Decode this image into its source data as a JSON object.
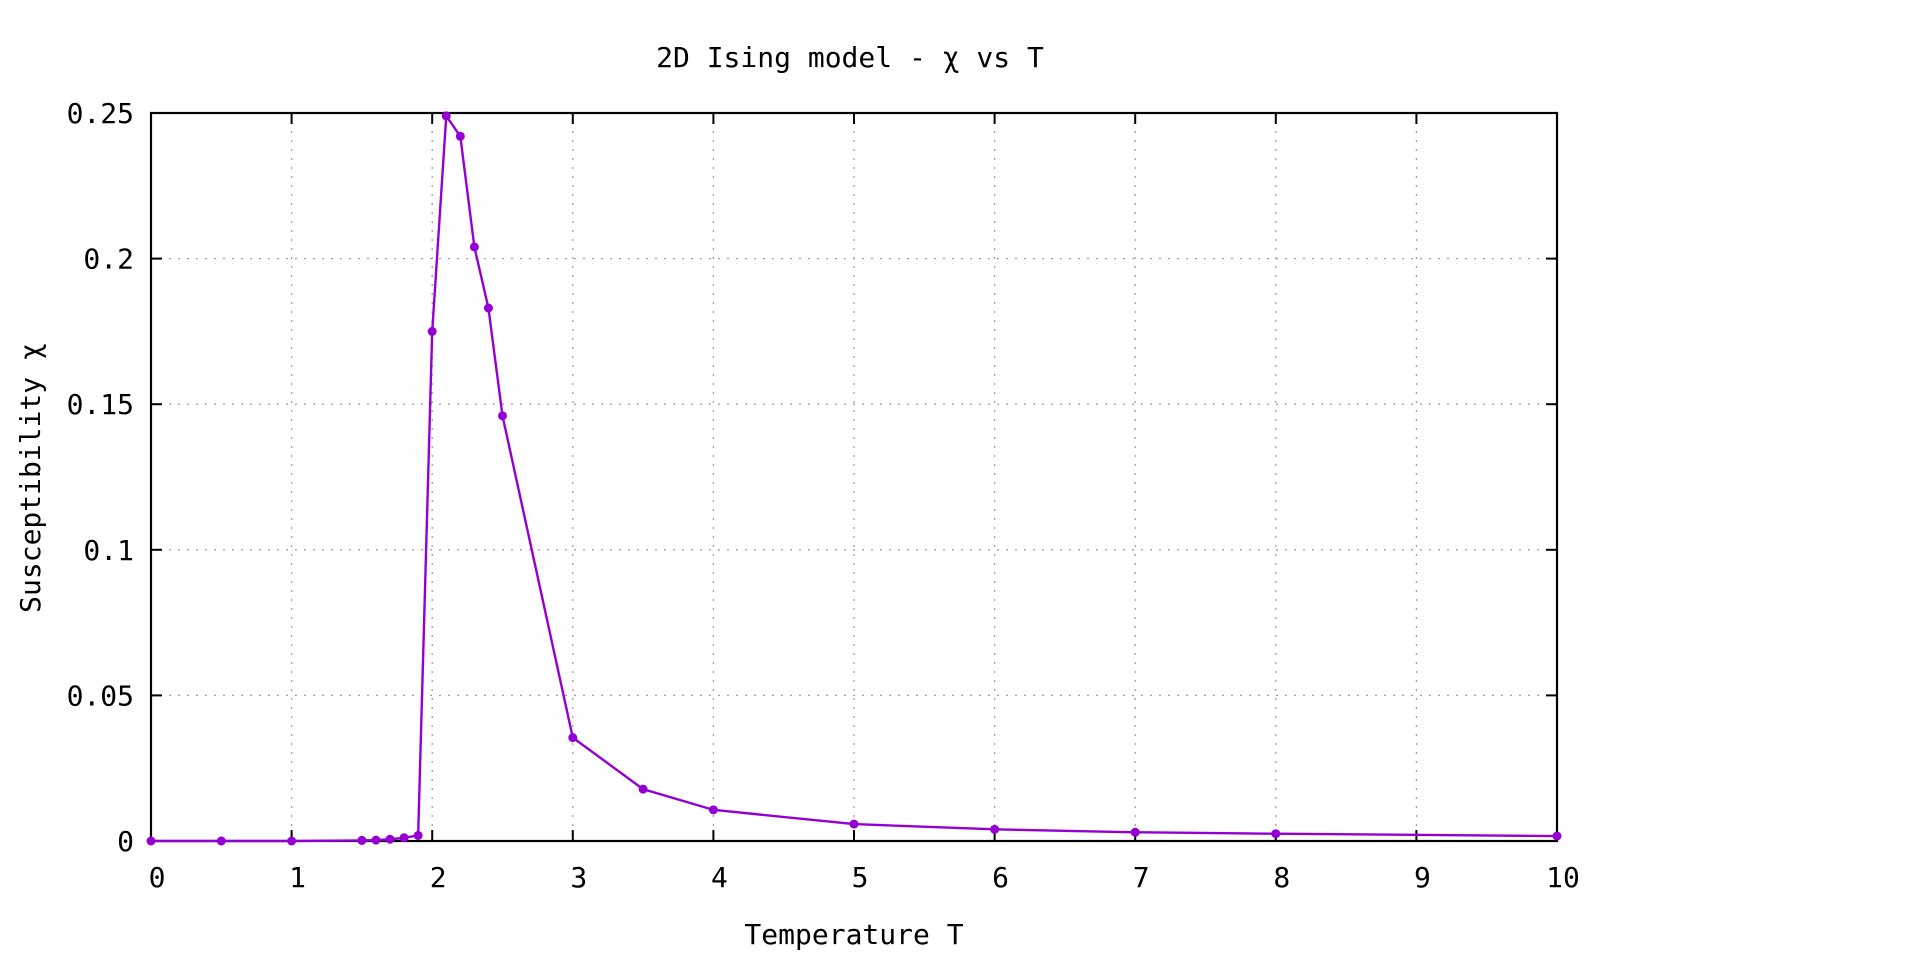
{
  "chart_data": {
    "type": "line",
    "title": "2D Ising model - χ vs T",
    "xlabel": "Temperature T",
    "ylabel": "Susceptibility χ",
    "xlim": [
      0,
      10
    ],
    "ylim": [
      0,
      0.25
    ],
    "grid": true,
    "x_ticks": [
      "0",
      "1",
      "2",
      "3",
      "4",
      "5",
      "6",
      "7",
      "8",
      "9",
      "10"
    ],
    "y_ticks": [
      "0",
      "0.05",
      "0.1",
      "0.15",
      "0.2",
      "0.25"
    ],
    "series": [
      {
        "color": "#9400d3",
        "x": [
          0,
          0.5,
          1.0,
          1.5,
          1.6,
          1.7,
          1.8,
          1.9,
          2.0,
          2.1,
          2.2,
          2.3,
          2.4,
          2.5,
          3.0,
          3.5,
          4.0,
          5.0,
          6.0,
          7.0,
          8.0,
          10.0
        ],
        "y": [
          0,
          0,
          0,
          0.0002,
          0.0003,
          0.0006,
          0.0011,
          0.0019,
          0.175,
          0.249,
          0.242,
          0.204,
          0.183,
          0.146,
          0.0355,
          0.0178,
          0.0107,
          0.0058,
          0.004,
          0.003,
          0.0025,
          0.0017
        ]
      }
    ]
  }
}
